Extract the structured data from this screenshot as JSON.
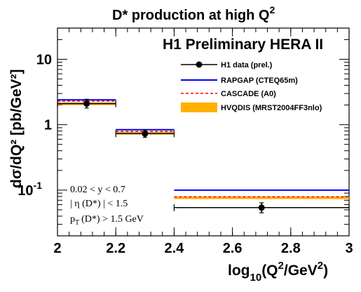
{
  "chart_data": {
    "type": "line",
    "title_pre": "D* production at high Q",
    "title_sup": "2",
    "label_experiment": "H1 Preliminary HERA II",
    "ylabel": "dσ/dQ² [pb/GeV²]",
    "xlabel_pre": "log",
    "xlabel_sub": "10",
    "xlabel_mid": "(Q",
    "xlabel_sup1": "2",
    "xlabel_slash": "/GeV",
    "xlabel_sup2": "2",
    "xlabel_end": ")",
    "xlim": [
      2,
      3
    ],
    "ylim": [
      0.02,
      30
    ],
    "yscale": "log",
    "x_ticks": [
      "2",
      "2.2",
      "2.4",
      "2.6",
      "2.8",
      "3"
    ],
    "y_ticks": [
      {
        "value": 10,
        "label": "10"
      },
      {
        "value": 1,
        "label": "1"
      },
      {
        "value": 0.1,
        "label": "10",
        "sup": "-1"
      }
    ],
    "bins": [
      {
        "x_low": 2.0,
        "x_high": 2.2,
        "x_center": 2.1,
        "data": 2.1,
        "err_up": 0.35,
        "err_down": 0.3,
        "rapgap": 2.4,
        "cascade": 2.3,
        "hvqdis_low": 2.0,
        "hvqdis_high": 2.2
      },
      {
        "x_low": 2.2,
        "x_high": 2.4,
        "x_center": 2.3,
        "data": 0.73,
        "err_up": 0.1,
        "err_down": 0.09,
        "rapgap": 0.84,
        "cascade": 0.79,
        "hvqdis_low": 0.71,
        "hvqdis_high": 0.78
      },
      {
        "x_low": 2.4,
        "x_high": 3.0,
        "x_center": 2.7,
        "data": 0.054,
        "err_up": 0.01,
        "err_down": 0.009,
        "rapgap": 0.1,
        "cascade": 0.079,
        "hvqdis_low": 0.073,
        "hvqdis_high": 0.08
      }
    ],
    "series": [
      {
        "key": "data",
        "name": "H1 data (prel.)",
        "color": "#000000"
      },
      {
        "key": "rapgap",
        "name": "RAPGAP (CTEQ65m)",
        "color": "#0000ff"
      },
      {
        "key": "cascade",
        "name": "CASCADE (A0)",
        "color": "#ff0000"
      },
      {
        "key": "hvqdis",
        "name": "HVQDIS (MRST2004FF3nlo)",
        "color": "#ffb000"
      }
    ],
    "cuts": [
      "0.02 < y < 0.7",
      "| η (D*) | < 1.5",
      "p",
      "(D*) > 1.5 GeV"
    ],
    "cut_sub": "T",
    "legend_position": "top-right",
    "grid": false
  }
}
